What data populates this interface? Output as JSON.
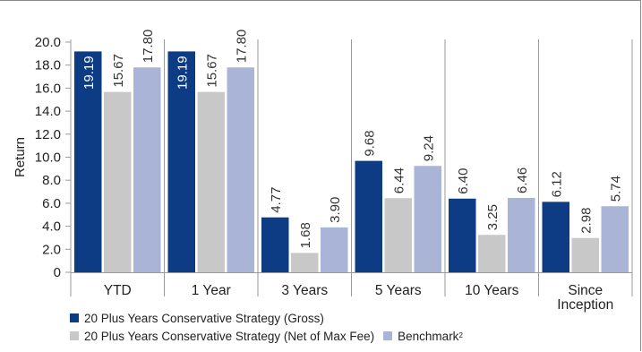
{
  "chart_data": {
    "type": "bar",
    "categories": [
      "YTD",
      "1 Year",
      "3 Years",
      "5 Years",
      "10 Years",
      "Since Inception"
    ],
    "series": [
      {
        "name": "20 Plus Years Conservative Strategy (Gross)",
        "values": [
          19.19,
          19.19,
          4.77,
          9.68,
          6.4,
          6.12
        ]
      },
      {
        "name": "20 Plus Years Conservative Strategy (Net of Max Fee)",
        "values": [
          15.67,
          15.67,
          1.68,
          6.44,
          3.25,
          2.98
        ]
      },
      {
        "name": "Benchmark",
        "values": [
          17.8,
          17.8,
          3.9,
          9.24,
          6.46,
          5.74
        ]
      }
    ],
    "ylabel": "Return",
    "ylim": [
      0,
      20
    ],
    "yticks": [
      "0",
      "2.0",
      "4.0",
      "6.0",
      "8.0",
      "10.0",
      "12.0",
      "14.0",
      "16.0",
      "18.0",
      "20.0"
    ],
    "data_labels": true,
    "grid": false,
    "legend_position": "bottom-left",
    "colors": [
      "#0d3b84",
      "#c8c8c8",
      "#aab4d6"
    ],
    "label_colors": [
      "#ffffff",
      "#333333",
      "#333333"
    ]
  },
  "legend": {
    "item1": "20 Plus Years Conservative Strategy (Gross)",
    "item2": "20 Plus Years Conservative Strategy (Net of Max Fee)",
    "item3": "Benchmark",
    "item3_sup": "2"
  }
}
